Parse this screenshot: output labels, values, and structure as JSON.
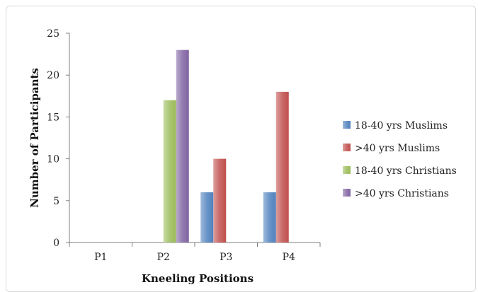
{
  "chart_data": {
    "type": "bar",
    "title": "",
    "xlabel": "Kneeling Positions",
    "ylabel": "Number of Participants",
    "categories": [
      "P1",
      "P2",
      "P3",
      "P4"
    ],
    "ylim": [
      0,
      25
    ],
    "yticks": [
      0,
      5,
      10,
      15,
      20,
      25
    ],
    "grid": false,
    "legend_position": "right",
    "series": [
      {
        "name": "18-40 yrs Muslims",
        "values": [
          0,
          0,
          6,
          6
        ],
        "color": "#4f81bd"
      },
      {
        "name": ">40 yrs Muslims",
        "values": [
          0,
          0,
          10,
          18
        ],
        "color": "#c0504d"
      },
      {
        "name": "18-40 yrs Christians",
        "values": [
          0,
          17,
          0,
          0
        ],
        "color": "#9bbb59"
      },
      {
        "name": ">40 yrs Christians",
        "values": [
          0,
          23,
          0,
          0
        ],
        "color": "#8064a2"
      }
    ]
  }
}
